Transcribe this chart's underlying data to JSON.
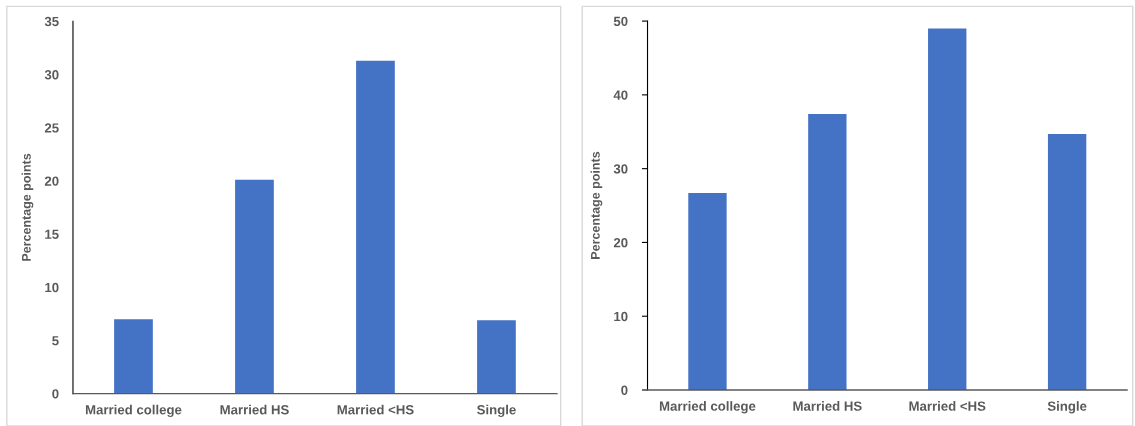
{
  "chart_data": [
    {
      "type": "bar",
      "categories": [
        "Married college",
        "Married HS",
        "Married <HS",
        "Single"
      ],
      "values": [
        7.0,
        20.1,
        31.3,
        6.9
      ],
      "color": "#4472c4",
      "ylabel": "Percentage points",
      "ylim": [
        0,
        35
      ],
      "yticks": [
        0,
        5,
        10,
        15,
        20,
        25,
        30,
        35
      ]
    },
    {
      "type": "bar",
      "categories": [
        "Married college",
        "Married HS",
        "Married <HS",
        "Single"
      ],
      "values": [
        26.7,
        37.4,
        49.0,
        34.7
      ],
      "color": "#4472c4",
      "ylabel": "Percentage points",
      "ylim": [
        0,
        50
      ],
      "yticks": [
        0,
        10,
        20,
        30,
        40,
        50
      ]
    }
  ]
}
